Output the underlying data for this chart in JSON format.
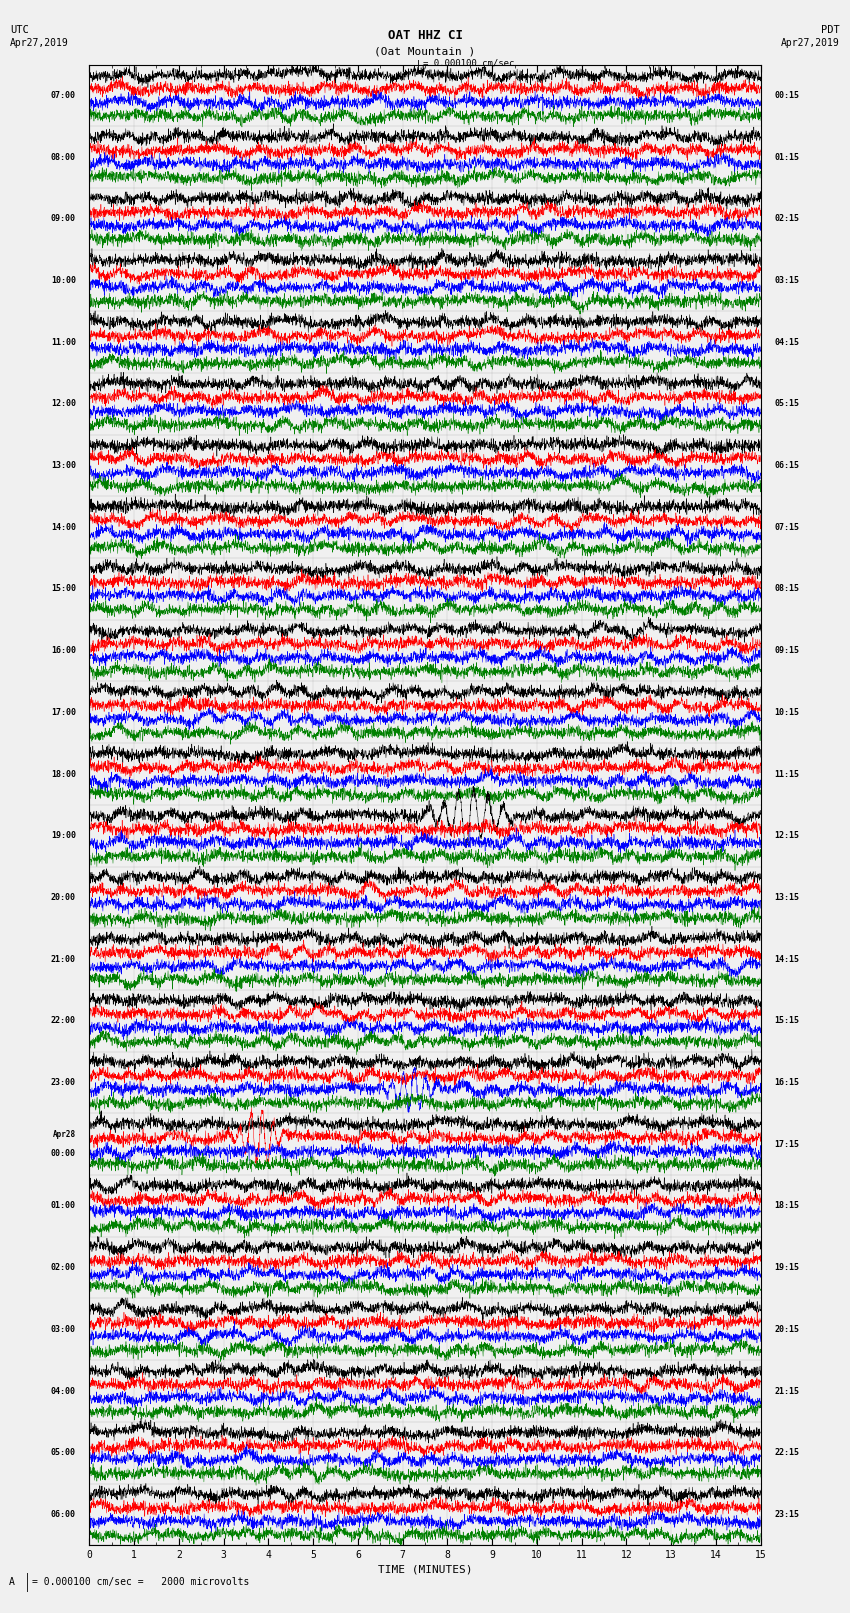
{
  "title_line1": "OAT HHZ CI",
  "title_line2": "(Oat Mountain )",
  "scale_label": "= 0.000100 cm/sec",
  "utc_label": "UTC\nApr27,2019",
  "pdt_label": "PDT\nApr27,2019",
  "xlabel": "TIME (MINUTES)",
  "footnote": "= 0.000100 cm/sec =   2000 microvolts",
  "left_times": [
    "07:00",
    "08:00",
    "09:00",
    "10:00",
    "11:00",
    "12:00",
    "13:00",
    "14:00",
    "15:00",
    "16:00",
    "17:00",
    "18:00",
    "19:00",
    "20:00",
    "21:00",
    "22:00",
    "23:00",
    "Apr28\n00:00",
    "01:00",
    "02:00",
    "03:00",
    "04:00",
    "05:00",
    "06:00"
  ],
  "right_times": [
    "00:15",
    "01:15",
    "02:15",
    "03:15",
    "04:15",
    "05:15",
    "06:15",
    "07:15",
    "08:15",
    "09:15",
    "10:15",
    "11:15",
    "12:15",
    "13:15",
    "14:15",
    "15:15",
    "16:15",
    "17:15",
    "18:15",
    "19:15",
    "20:15",
    "21:15",
    "22:15",
    "23:15"
  ],
  "n_rows": 24,
  "traces_per_row": 4,
  "colors": [
    "black",
    "red",
    "blue",
    "green"
  ],
  "fig_width": 8.5,
  "fig_height": 16.13,
  "bg_color": "#f0f0f0",
  "trace_amplitude": 0.11,
  "x_ticks": [
    0,
    1,
    2,
    3,
    4,
    5,
    6,
    7,
    8,
    9,
    10,
    11,
    12,
    13,
    14,
    15
  ],
  "minutes_per_row": 15,
  "n_points": 3000
}
